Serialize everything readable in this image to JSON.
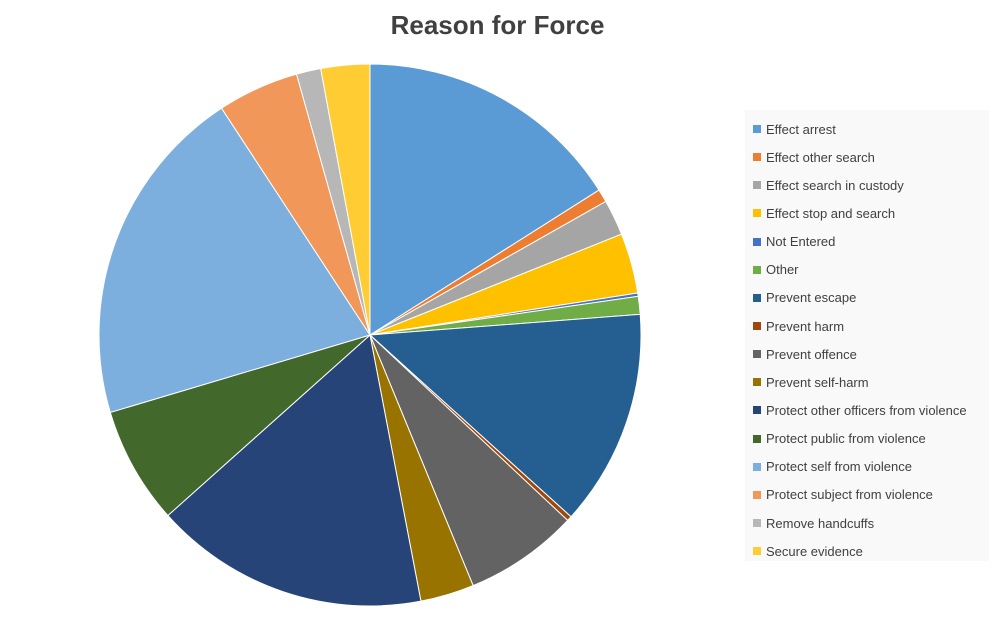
{
  "chart_data": {
    "type": "pie",
    "title": "Reason for Force",
    "legend_position": "right",
    "categories": [
      "Effect arrest",
      "Effect other search",
      "Effect search in custody",
      "Effect stop and search",
      "Not Entered",
      "Other",
      "Prevent escape",
      "Prevent harm",
      "Prevent offence",
      "Prevent self-harm",
      "Protect other officers from violence",
      "Protect public from violence",
      "Protect self from violence",
      "Protect subject from violence",
      "Remove handcuffs",
      "Secure evidence"
    ],
    "values": [
      16.5,
      0.8,
      2.2,
      3.7,
      0.2,
      1.1,
      13.3,
      0.3,
      7.0,
      3.3,
      16.9,
      7.2,
      21.0,
      5.0,
      1.5,
      3.0
    ],
    "colors": [
      "#5b9bd5",
      "#ed7d31",
      "#a5a5a5",
      "#ffc000",
      "#4472c4",
      "#70ad47",
      "#255e91",
      "#9e480e",
      "#636363",
      "#997300",
      "#264478",
      "#43682b",
      "#7cafdd",
      "#f1975a",
      "#b7b7b7",
      "#ffcd33"
    ]
  }
}
